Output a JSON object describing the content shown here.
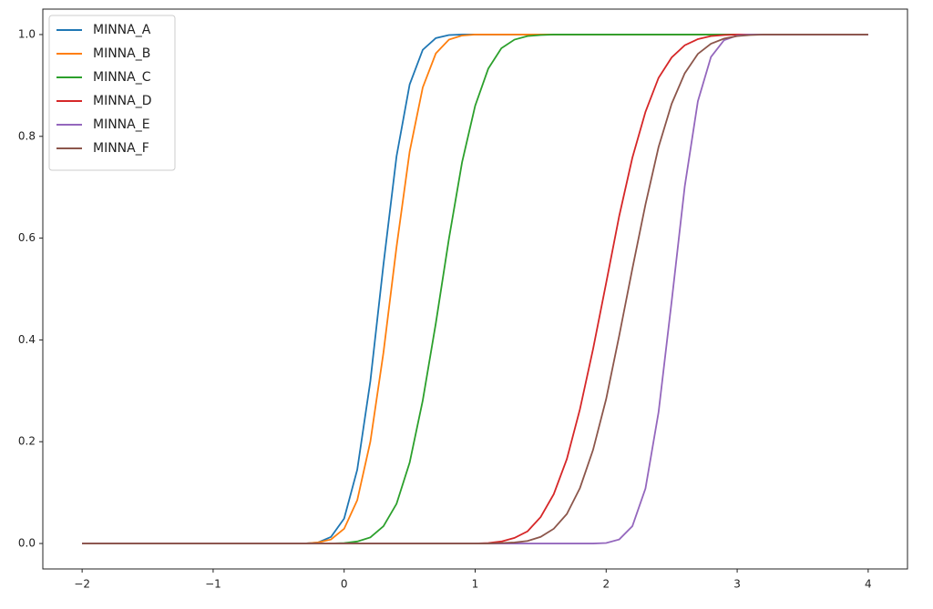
{
  "chart_data": {
    "type": "line",
    "x": [
      -2,
      -1.9,
      -1.8,
      -1.7,
      -1.6,
      -1.5,
      -1.4,
      -1.3,
      -1.2,
      -1.1,
      -1,
      -0.9,
      -0.8,
      -0.7,
      -0.6,
      -0.5,
      -0.4,
      -0.3,
      -0.2,
      -0.1,
      0,
      0.1,
      0.2,
      0.3,
      0.4,
      0.5,
      0.6,
      0.7,
      0.8,
      0.9,
      1,
      1.1,
      1.2,
      1.3,
      1.4,
      1.5,
      1.6,
      1.7,
      1.8,
      1.9,
      2,
      2.1,
      2.2,
      2.3,
      2.4,
      2.5,
      2.6,
      2.7,
      2.8,
      2.9,
      3,
      3.1,
      3.2,
      3.3,
      3.4,
      3.5,
      3.6,
      3.7,
      3.8,
      3.9,
      4
    ],
    "series": [
      {
        "name": "MINNA_A",
        "color": "#1f77b4",
        "values": [
          0,
          0,
          0,
          0,
          0,
          0,
          0,
          0,
          0,
          0,
          0,
          0,
          0,
          0,
          0,
          0,
          0,
          0,
          0.002,
          0.013,
          0.049,
          0.145,
          0.319,
          0.548,
          0.761,
          0.902,
          0.97,
          0.993,
          0.999,
          1,
          1,
          1,
          1,
          1,
          1,
          1,
          1,
          1,
          1,
          1,
          1,
          1,
          1,
          1,
          1,
          1,
          1,
          1,
          1,
          1,
          1,
          1,
          1,
          1,
          1,
          1,
          1,
          1,
          1,
          1,
          1
        ]
      },
      {
        "name": "MINNA_B",
        "color": "#ff7f0e",
        "values": [
          0,
          0,
          0,
          0,
          0,
          0,
          0,
          0,
          0,
          0,
          0,
          0,
          0,
          0,
          0,
          0,
          0,
          0,
          0.002,
          0.008,
          0.029,
          0.085,
          0.2,
          0.375,
          0.583,
          0.77,
          0.896,
          0.963,
          0.99,
          0.998,
          1,
          1,
          1,
          1,
          1,
          1,
          1,
          1,
          1,
          1,
          1,
          1,
          1,
          1,
          1,
          1,
          1,
          1,
          1,
          1,
          1,
          1,
          1,
          1,
          1,
          1,
          1,
          1,
          1,
          1,
          1
        ]
      },
      {
        "name": "MINNA_C",
        "color": "#2ca02c",
        "values": [
          0,
          0,
          0,
          0,
          0,
          0,
          0,
          0,
          0,
          0,
          0,
          0,
          0,
          0,
          0,
          0,
          0,
          0,
          0,
          0,
          0.001,
          0.004,
          0.012,
          0.034,
          0.078,
          0.159,
          0.281,
          0.433,
          0.599,
          0.749,
          0.86,
          0.933,
          0.973,
          0.99,
          0.997,
          0.999,
          1,
          1,
          1,
          1,
          1,
          1,
          1,
          1,
          1,
          1,
          1,
          1,
          1,
          1,
          1,
          1,
          1,
          1,
          1,
          1,
          1,
          1,
          1,
          1,
          1
        ]
      },
      {
        "name": "MINNA_D",
        "color": "#d62728",
        "values": [
          0,
          0,
          0,
          0,
          0,
          0,
          0,
          0,
          0,
          0,
          0,
          0,
          0,
          0,
          0,
          0,
          0,
          0,
          0,
          0,
          0,
          0,
          0,
          0,
          0,
          0,
          0,
          0,
          0,
          0,
          0,
          0.001,
          0.004,
          0.011,
          0.024,
          0.052,
          0.097,
          0.166,
          0.264,
          0.382,
          0.512,
          0.644,
          0.758,
          0.848,
          0.915,
          0.955,
          0.979,
          0.991,
          0.997,
          0.999,
          1,
          1,
          1,
          1,
          1,
          1,
          1,
          1,
          1,
          1,
          1
        ]
      },
      {
        "name": "MINNA_E",
        "color": "#9467bd",
        "values": [
          0,
          0,
          0,
          0,
          0,
          0,
          0,
          0,
          0,
          0,
          0,
          0,
          0,
          0,
          0,
          0,
          0,
          0,
          0,
          0,
          0,
          0,
          0,
          0,
          0,
          0,
          0,
          0,
          0,
          0,
          0,
          0,
          0,
          0,
          0,
          0,
          0,
          0,
          0,
          0,
          0.001,
          0.008,
          0.034,
          0.108,
          0.258,
          0.476,
          0.702,
          0.869,
          0.956,
          0.989,
          0.998,
          1,
          1,
          1,
          1,
          1,
          1,
          1,
          1,
          1,
          1
        ]
      },
      {
        "name": "MINNA_F",
        "color": "#8c564b",
        "values": [
          0,
          0,
          0,
          0,
          0,
          0,
          0,
          0,
          0,
          0,
          0,
          0,
          0,
          0,
          0,
          0,
          0,
          0,
          0,
          0,
          0,
          0,
          0,
          0,
          0,
          0,
          0,
          0,
          0,
          0,
          0,
          0,
          0.001,
          0.002,
          0.005,
          0.013,
          0.029,
          0.058,
          0.109,
          0.184,
          0.284,
          0.409,
          0.54,
          0.666,
          0.779,
          0.864,
          0.924,
          0.962,
          0.982,
          0.992,
          0.997,
          0.999,
          1,
          1,
          1,
          1,
          1,
          1,
          1,
          1,
          1
        ]
      }
    ],
    "xlim": [
      -2.3,
      4.3
    ],
    "ylim": [
      -0.05,
      1.05
    ],
    "xticks": [
      {
        "value": -2,
        "label": "−2"
      },
      {
        "value": -1,
        "label": "−1"
      },
      0,
      1,
      2,
      3,
      4
    ],
    "yticks": [
      {
        "value": 0,
        "label": "0.0"
      },
      0.2,
      0.4,
      0.6,
      0.8,
      {
        "value": 1,
        "label": "1.0"
      }
    ],
    "legend": "upper left"
  }
}
